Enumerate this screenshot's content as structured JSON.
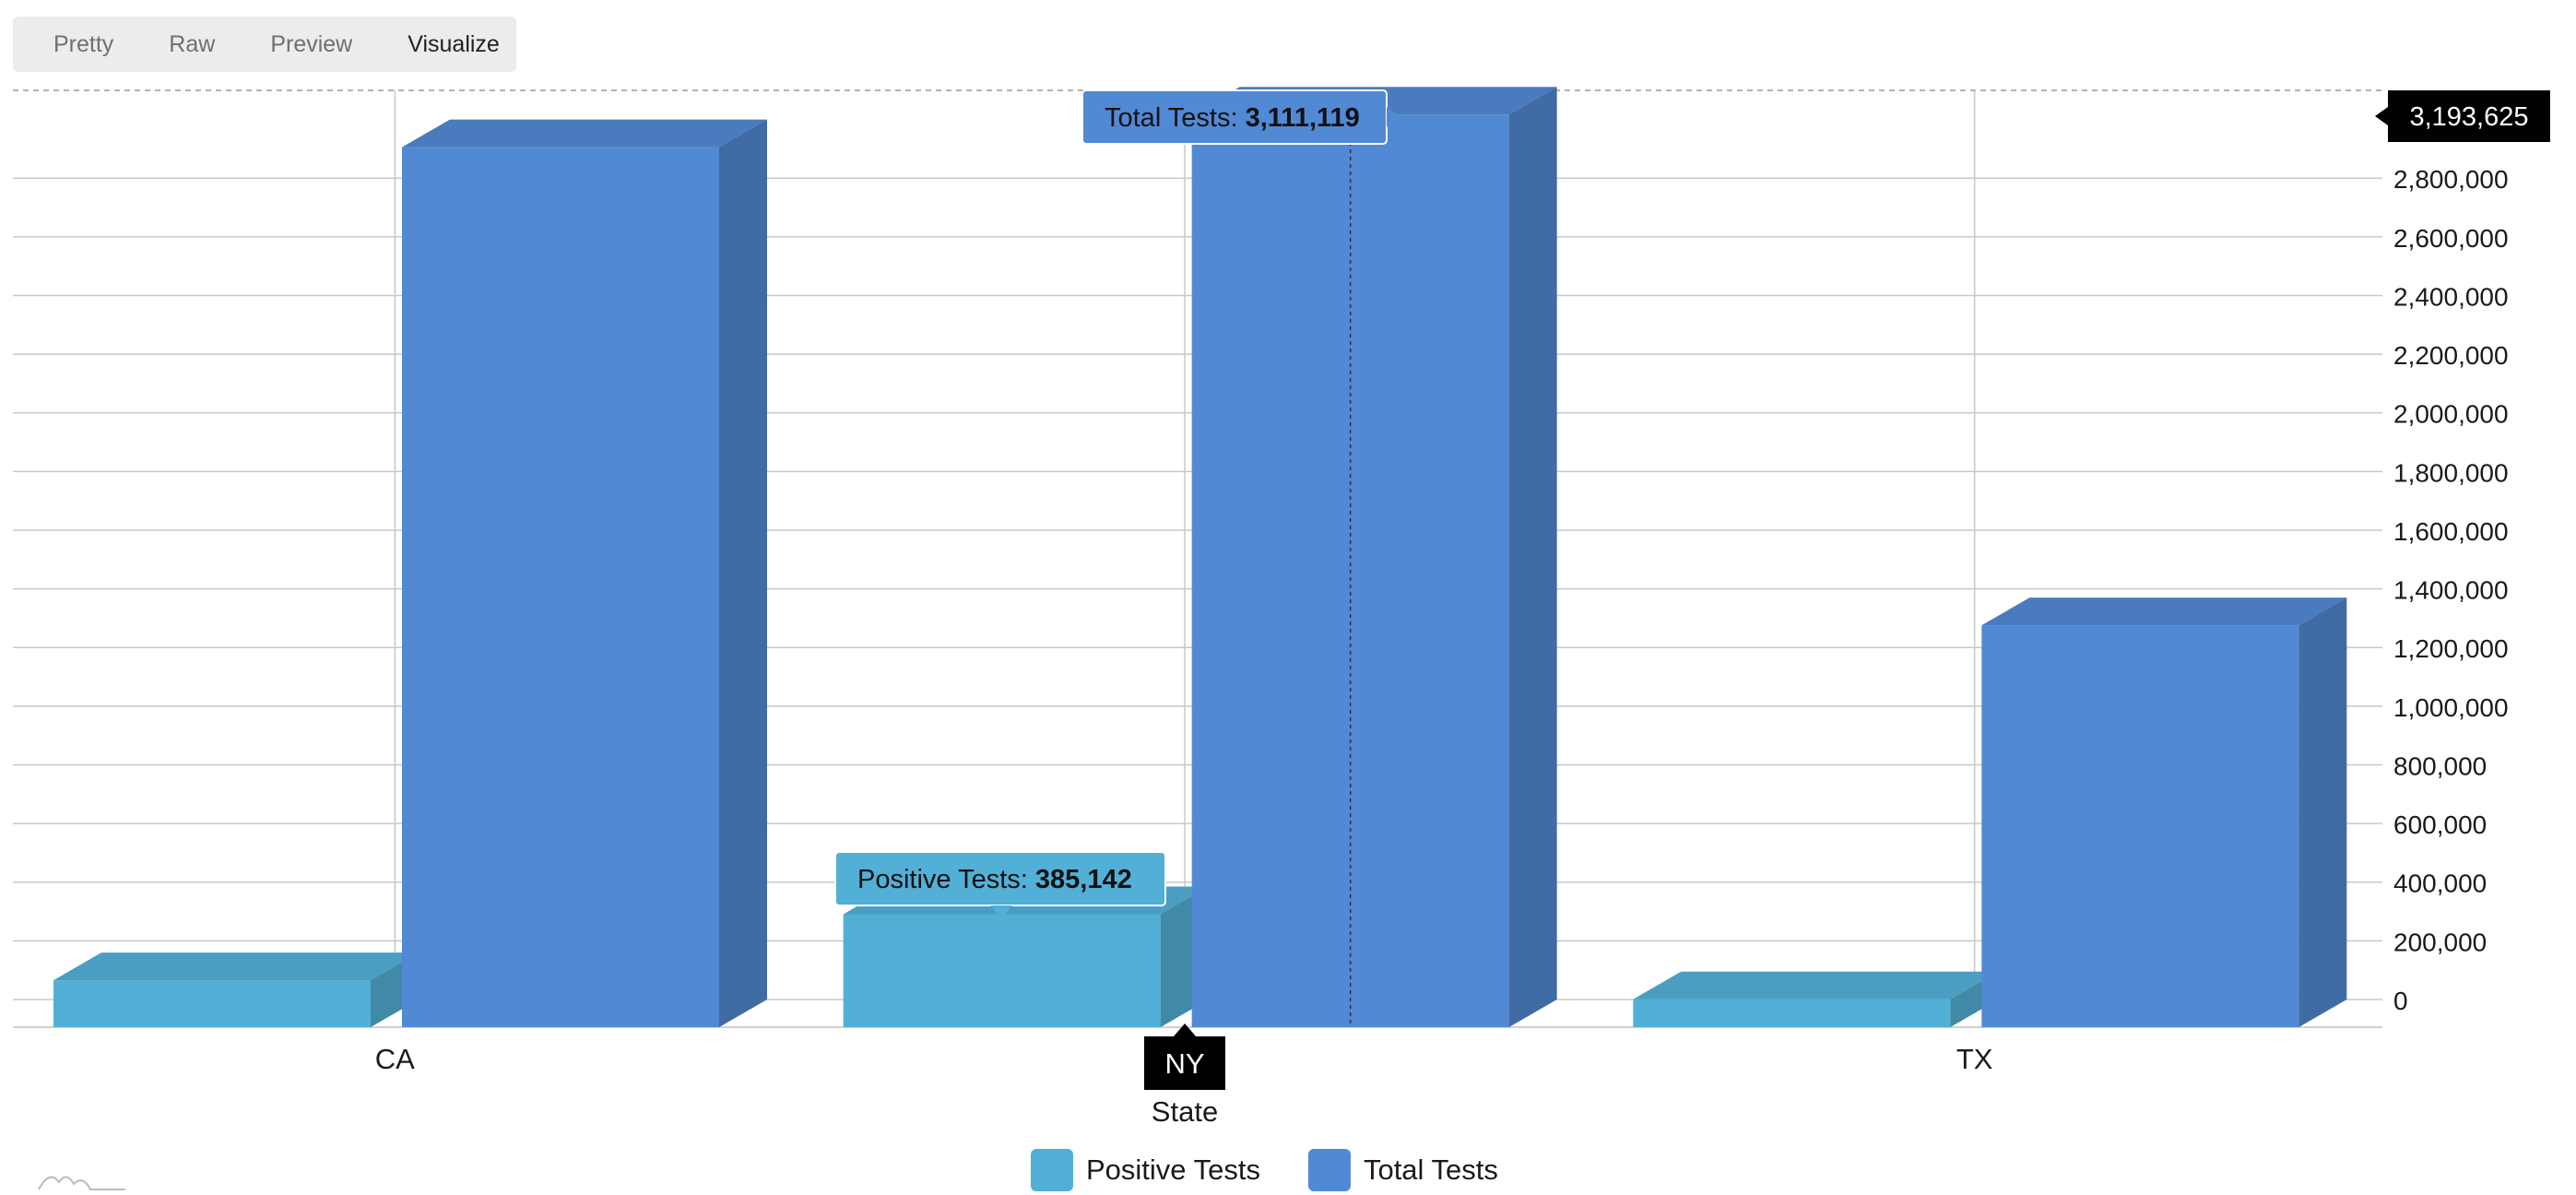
{
  "tabs": {
    "pretty": "Pretty",
    "raw": "Raw",
    "preview": "Preview",
    "visualize": "Visualize"
  },
  "colors": {
    "positive": "#52afd6",
    "total": "#5289d4",
    "grid": "#c8c8c8",
    "label_bg": "#000000"
  },
  "chart_data": {
    "type": "bar",
    "xlabel": "State",
    "ylabel": "",
    "categories": [
      "CA",
      "NY",
      "TX"
    ],
    "series": [
      {
        "name": "Positive Tests",
        "values": [
          160000,
          385142,
          95000
        ]
      },
      {
        "name": "Total Tests",
        "values": [
          3000000,
          3111119,
          1370000
        ]
      }
    ],
    "ylim": [
      0,
      3193625
    ],
    "y_ticks": [
      0,
      200000,
      400000,
      600000,
      800000,
      1000000,
      1200000,
      1400000,
      1600000,
      1800000,
      2000000,
      2200000,
      2400000,
      2600000,
      2800000
    ],
    "y_tick_labels": [
      "0",
      "200,000",
      "400,000",
      "600,000",
      "800,000",
      "1,000,000",
      "1,200,000",
      "1,400,000",
      "1,600,000",
      "1,800,000",
      "2,000,000",
      "2,200,000",
      "2,400,000",
      "2,600,000",
      "2,800,000"
    ],
    "cursor_y_label": "3,193,625",
    "cursor_x_label": "NY",
    "tooltips": {
      "total_label": "Total Tests: ",
      "total_value": "3,111,119",
      "positive_label": "Positive Tests: ",
      "positive_value": "385,142"
    },
    "grid": true,
    "legend_position": "bottom",
    "style": "3d"
  }
}
